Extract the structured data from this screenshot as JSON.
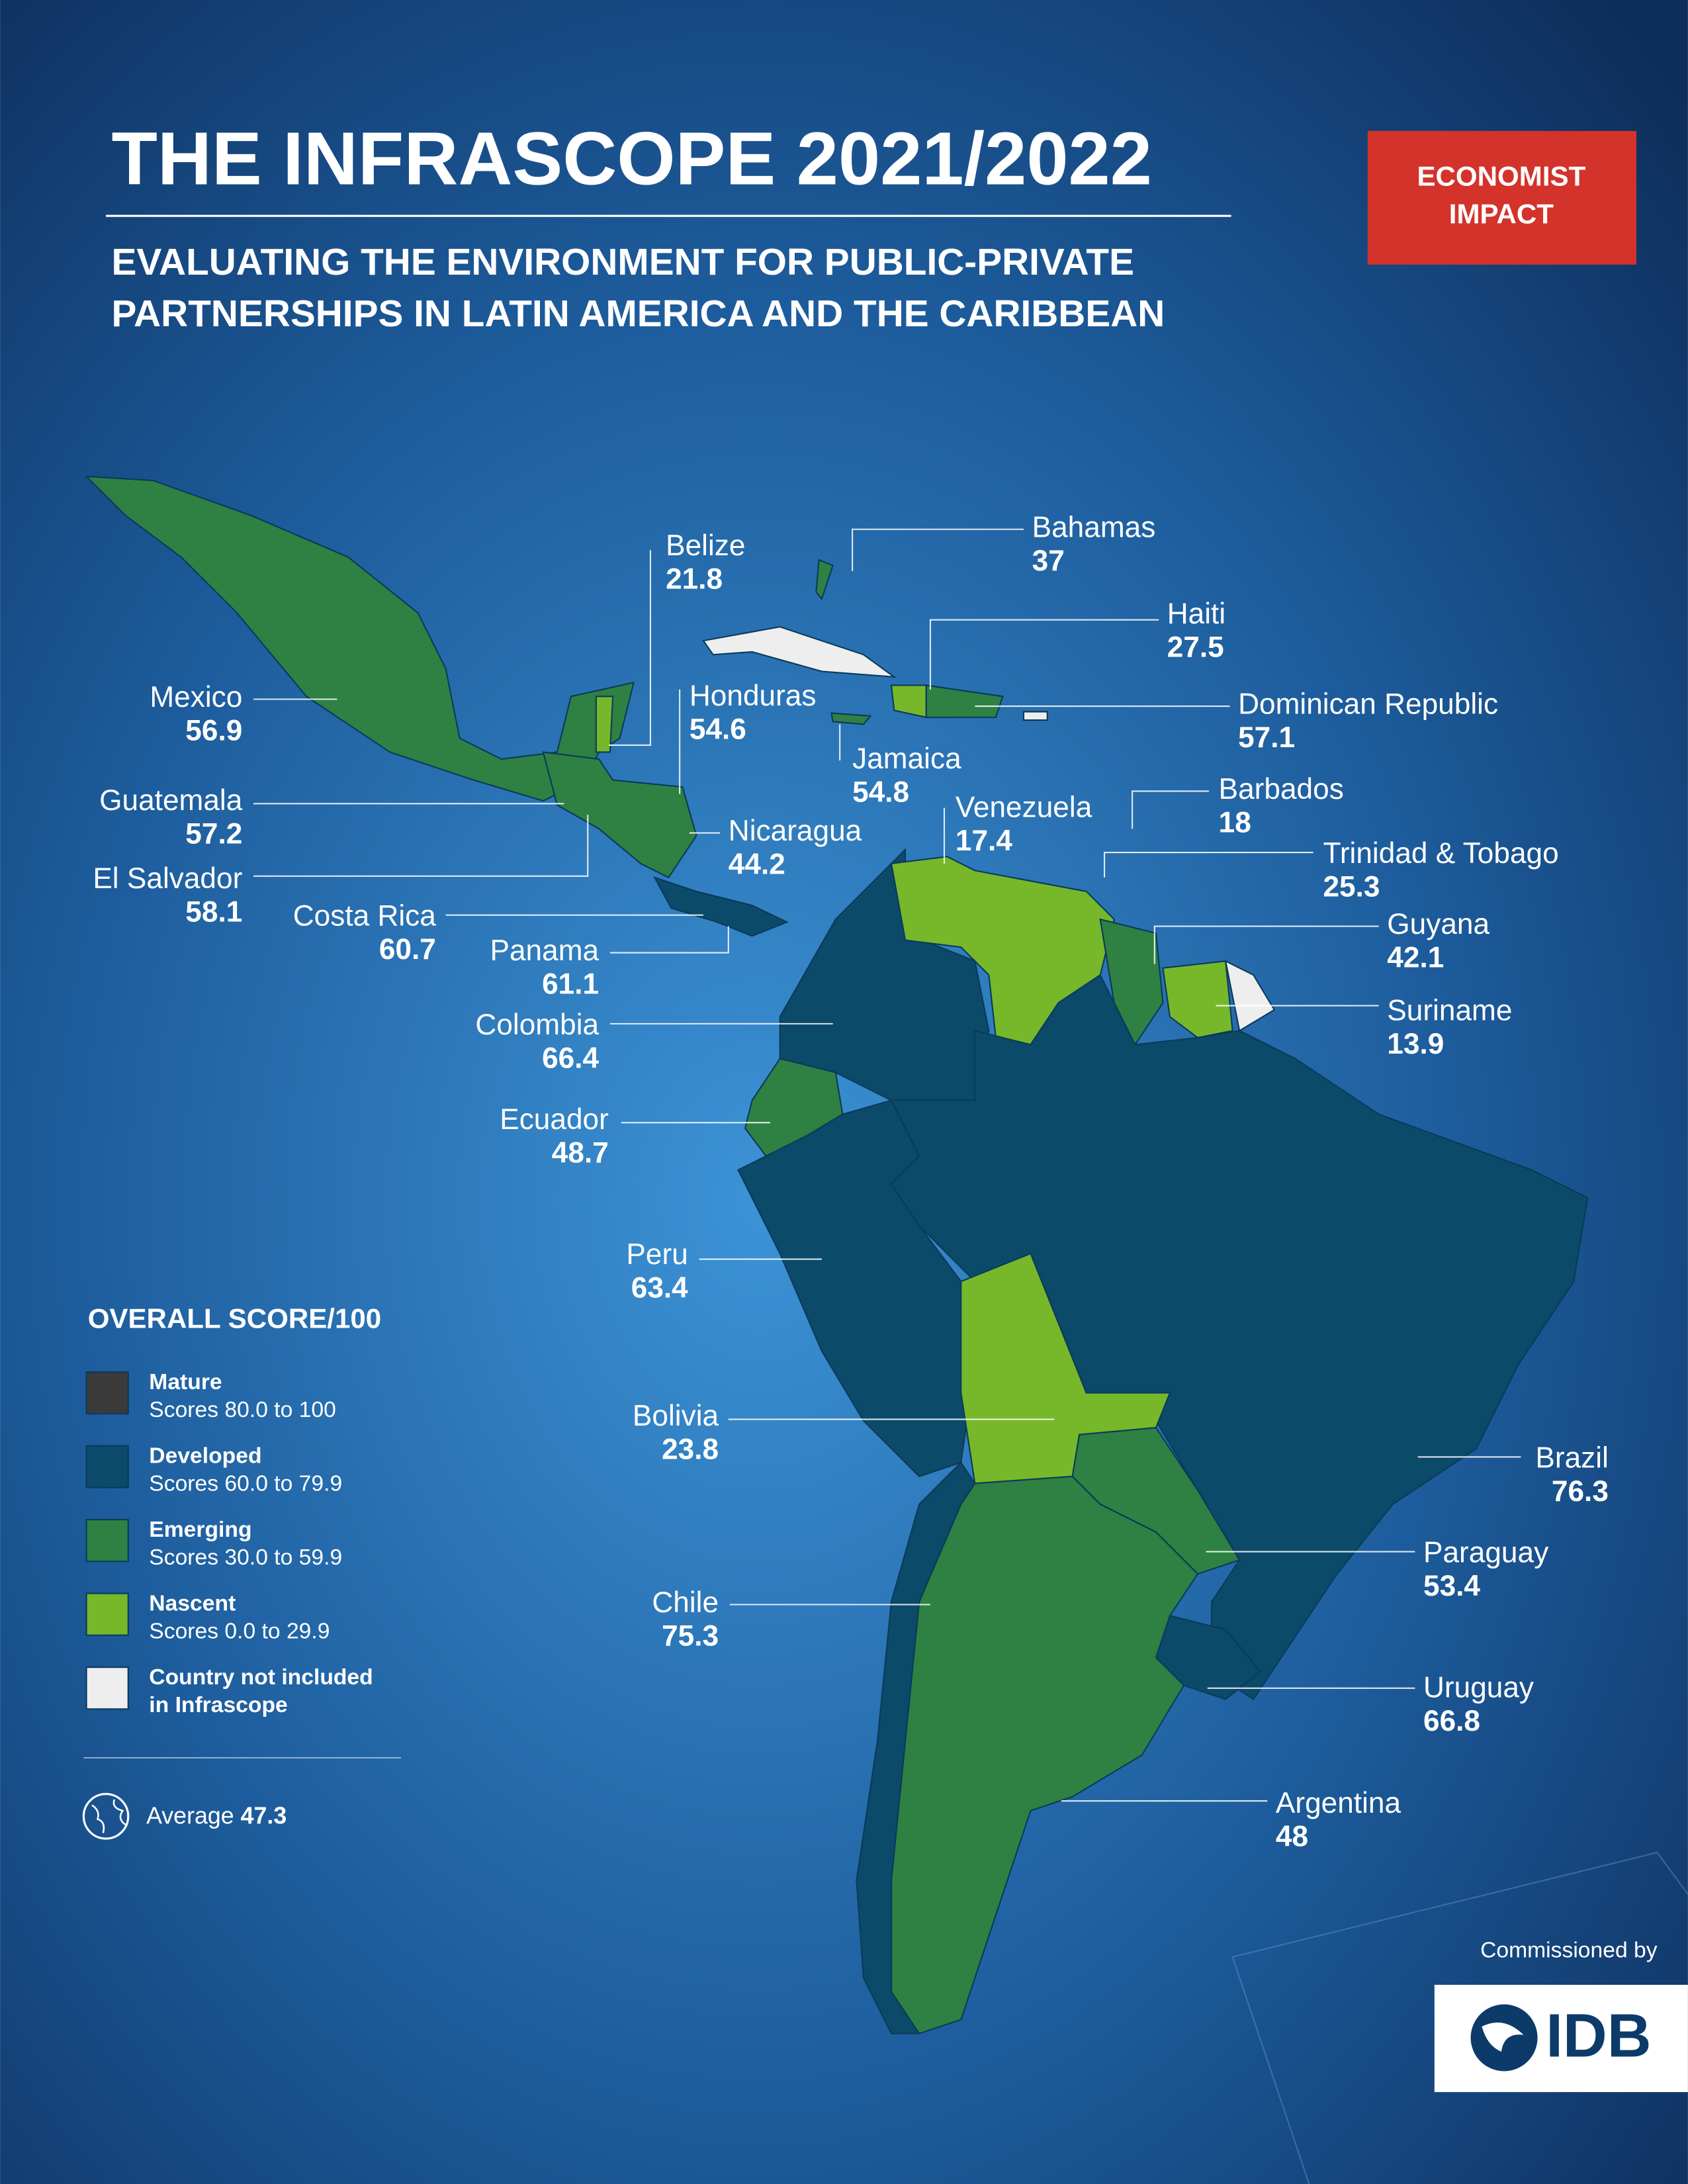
{
  "header": {
    "title": "THE INFRASCOPE 2021/2022",
    "subtitle": [
      "EVALUATING THE ENVIRONMENT FOR PUBLIC-PRIVATE",
      "PARTNERSHIPS IN LATIN AMERICA AND THE CARIBBEAN"
    ]
  },
  "badge": [
    "ECONOMIST",
    "IMPACT"
  ],
  "countries": [
    {
      "name": "Bahamas",
      "score": 37
    },
    {
      "name": "Belize",
      "score": 21.8
    },
    {
      "name": "Haiti",
      "score": 27.5
    },
    {
      "name": "Mexico",
      "score": 56.9
    },
    {
      "name": "Honduras",
      "score": 54.6
    },
    {
      "name": "Dominican Republic",
      "score": 57.1
    },
    {
      "name": "Jamaica",
      "score": 54.8
    },
    {
      "name": "Guatemala",
      "score": 57.2
    },
    {
      "name": "Barbados",
      "score": 18
    },
    {
      "name": "Venezuela",
      "score": 17.4
    },
    {
      "name": "Nicaragua",
      "score": 44.2
    },
    {
      "name": "Trinidad & Tobago",
      "score": 25.3
    },
    {
      "name": "El Salvador",
      "score": 58.1
    },
    {
      "name": "Costa Rica",
      "score": 60.7
    },
    {
      "name": "Guyana",
      "score": 42.1
    },
    {
      "name": "Panama",
      "score": 61.1
    },
    {
      "name": "Suriname",
      "score": 13.9
    },
    {
      "name": "Colombia",
      "score": 66.4
    },
    {
      "name": "Ecuador",
      "score": 48.7
    },
    {
      "name": "Peru",
      "score": 63.4
    },
    {
      "name": "Bolivia",
      "score": 23.8
    },
    {
      "name": "Brazil",
      "score": 76.3
    },
    {
      "name": "Paraguay",
      "score": 53.4
    },
    {
      "name": "Chile",
      "score": 75.3
    },
    {
      "name": "Uruguay",
      "score": 66.8
    },
    {
      "name": "Argentina",
      "score": 48
    }
  ],
  "legend": {
    "title": "OVERALL SCORE/100",
    "items": [
      {
        "lines": [
          "Mature",
          "Scores 80.0 to 100"
        ]
      },
      {
        "lines": [
          "Developed",
          "Scores 60.0 to 79.9"
        ]
      },
      {
        "lines": [
          "Emerging",
          "Scores 30.0 to 59.9"
        ]
      },
      {
        "lines": [
          "Nascent",
          "Scores 0.0 to 29.9"
        ]
      },
      {
        "lines": [
          "Country not included",
          "in Infrascope"
        ]
      }
    ]
  },
  "average": {
    "label": "Average",
    "value": 47.3
  },
  "footer": {
    "commissioned_by": "Commissioned by",
    "logo": "IDB"
  }
}
